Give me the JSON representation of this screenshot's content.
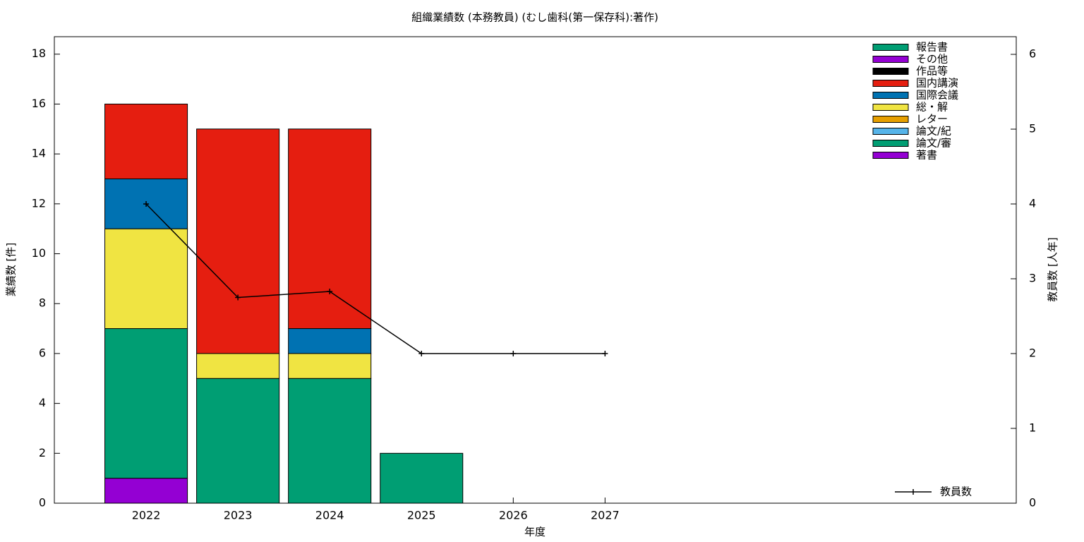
{
  "chart_data": {
    "type": "bar",
    "title": "組織業績数 (本務教員) (むし歯科(第一保存科):著作)",
    "x_label": "年度",
    "y_label": "業績数 [件]",
    "y2_label": "教員数 [人年]",
    "x": [
      2022,
      2023,
      2024,
      2025,
      2026,
      2027
    ],
    "xlim": [
      2021,
      2031.48
    ],
    "xticks": [
      2022,
      2023,
      2024,
      2025,
      2026,
      2027
    ],
    "ylim": [
      0,
      18.7
    ],
    "yticks": [
      0,
      2,
      4,
      6,
      8,
      10,
      12,
      14,
      16,
      18
    ],
    "y2lim": [
      0,
      6.236
    ],
    "y2ticks": [
      0,
      1,
      2,
      3,
      4,
      5,
      6
    ],
    "series": [
      {
        "name": "著書",
        "color": "#9400d3",
        "values": [
          1,
          0,
          0,
          0,
          0,
          0
        ]
      },
      {
        "name": "論文/審",
        "color": "#009e73",
        "values": [
          6,
          5,
          5,
          2,
          0,
          0
        ]
      },
      {
        "name": "論文/紀",
        "color": "#56b4e9",
        "values": [
          0,
          0,
          0,
          0,
          0,
          0
        ]
      },
      {
        "name": "レター",
        "color": "#e69f00",
        "values": [
          0,
          0,
          0,
          0,
          0,
          0
        ]
      },
      {
        "name": "総・解",
        "color": "#f0e442",
        "values": [
          4,
          1,
          1,
          0,
          0,
          0
        ]
      },
      {
        "name": "国際会議",
        "color": "#0072b2",
        "values": [
          2,
          0,
          1,
          0,
          0,
          0
        ]
      },
      {
        "name": "国内講演",
        "color": "#e51e10",
        "values": [
          3,
          9,
          8,
          0,
          0,
          0
        ]
      },
      {
        "name": "作品等",
        "color": "#000000",
        "values": [
          0,
          0,
          0,
          0,
          0,
          0
        ]
      },
      {
        "name": "その他",
        "color": "#9400d3",
        "values": [
          0,
          0,
          0,
          0,
          0,
          0
        ]
      },
      {
        "name": "報告書",
        "color": "#009e73",
        "values": [
          0,
          0,
          0,
          0,
          0,
          0
        ]
      },
      {
        "name": "教員数",
        "type": "line",
        "axis": "y2",
        "color": "#000000",
        "values": [
          4,
          2.75,
          2.83,
          2,
          2,
          2
        ]
      }
    ]
  }
}
